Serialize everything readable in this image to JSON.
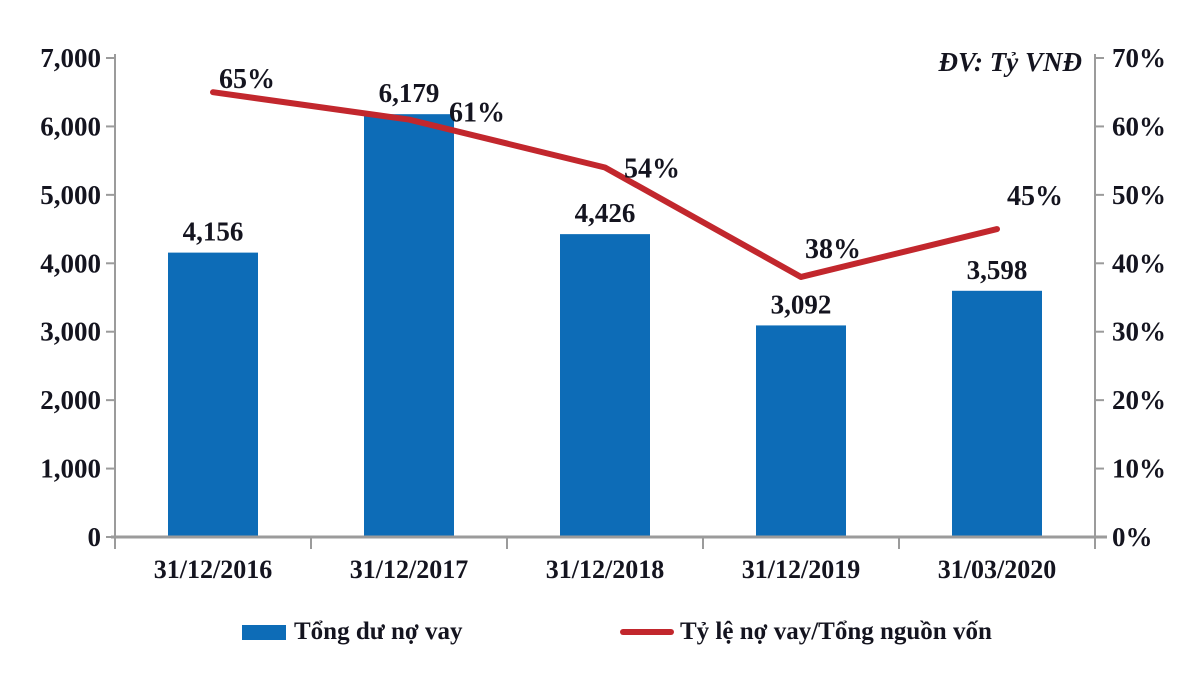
{
  "chart_data": {
    "type": "combo-bar-line",
    "title": "",
    "unit_label": "ĐV: Tỷ VNĐ",
    "categories": [
      "31/12/2016",
      "31/12/2017",
      "31/12/2018",
      "31/12/2019",
      "31/03/2020"
    ],
    "series": [
      {
        "name": "Tổng dư nợ vay",
        "type": "bar",
        "axis": "left",
        "color": "#0d6cb7",
        "values": [
          4156,
          6179,
          4426,
          3092,
          3598
        ],
        "labels": [
          "4,156",
          "6,179",
          "4,426",
          "3,092",
          "3,598"
        ]
      },
      {
        "name": "Tỷ lệ nợ vay/Tổng nguồn vốn",
        "type": "line",
        "axis": "right",
        "color": "#c2272d",
        "values": [
          65,
          61,
          54,
          38,
          45
        ],
        "labels": [
          "65%",
          "61%",
          "54%",
          "38%",
          "45%"
        ]
      }
    ],
    "left_axis": {
      "min": 0,
      "max": 7000,
      "step": 1000,
      "tick_labels": [
        "0",
        "1,000",
        "2,000",
        "3,000",
        "4,000",
        "5,000",
        "6,000",
        "7,000"
      ]
    },
    "right_axis": {
      "min": 0,
      "max": 70,
      "step": 10,
      "tick_labels": [
        "0%",
        "10%",
        "20%",
        "30%",
        "40%",
        "50%",
        "60%",
        "70%"
      ]
    },
    "axis_color": "#9b9b9b",
    "text_color": "#14141f",
    "grid": false,
    "legend_position": "bottom"
  }
}
